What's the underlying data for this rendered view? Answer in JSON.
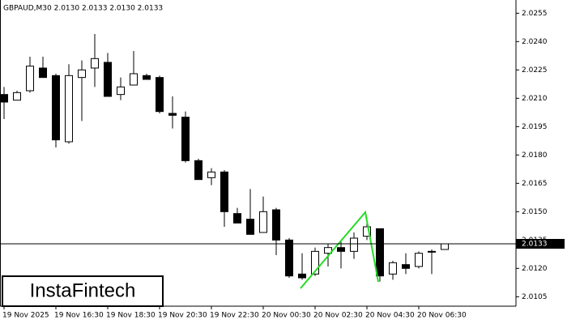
{
  "chart_data": {
    "type": "candlestick",
    "title": "GBPAUD,M30  2.0130 2.0133 2.0130 2.0133",
    "categories": [
      "19 Nov 2025",
      null,
      null,
      null,
      "19 Nov 16:30",
      null,
      null,
      null,
      "19 Nov 18:30",
      null,
      null,
      null,
      "19 Nov 20:30",
      null,
      null,
      null,
      "19 Nov 22:30",
      null,
      null,
      null,
      "20 Nov 00:30",
      null,
      null,
      null,
      "20 Nov 02:30",
      null,
      null,
      null,
      "20 Nov 04:30",
      null,
      null,
      null,
      "20 Nov 06:30",
      null,
      null
    ],
    "open": [
      2.0212,
      2.0209,
      2.0214,
      2.0226,
      2.0222,
      2.0187,
      2.0221,
      2.0226,
      2.0229,
      2.0212,
      2.0217,
      2.0222,
      2.0221,
      2.0202,
      2.02,
      2.0177,
      2.0168,
      2.0171,
      2.0149,
      2.0146,
      2.0139,
      2.0151,
      2.0135,
      2.0117,
      2.0117,
      2.0128,
      2.0131,
      2.0129,
      2.0137,
      2.0141,
      2.0117,
      2.0122,
      2.0121,
      2.0129,
      2.013
    ],
    "high": [
      2.0216,
      2.0214,
      2.0232,
      2.0232,
      2.0223,
      2.0228,
      2.023,
      2.0244,
      2.0234,
      2.0221,
      2.0235,
      2.0223,
      2.0222,
      2.0211,
      2.0203,
      2.0178,
      2.0173,
      2.0172,
      2.0152,
      2.0162,
      2.0158,
      2.0152,
      2.0136,
      2.0128,
      2.0131,
      2.0133,
      2.0135,
      2.0139,
      2.0147,
      2.0141,
      2.0124,
      2.0128,
      2.0129,
      2.013,
      2.0133
    ],
    "low": [
      2.0199,
      2.0209,
      2.0213,
      2.0221,
      2.0184,
      2.0186,
      2.0198,
      2.0216,
      2.0211,
      2.0209,
      2.0217,
      2.022,
      2.0202,
      2.0194,
      2.0176,
      2.0167,
      2.0164,
      2.0142,
      2.0144,
      2.0138,
      2.0139,
      2.0127,
      2.0115,
      2.0114,
      2.0116,
      2.0121,
      2.012,
      2.0125,
      2.0135,
      2.0113,
      2.0114,
      2.0117,
      2.012,
      2.0117,
      2.013
    ],
    "close": [
      2.0208,
      2.0213,
      2.0227,
      2.0221,
      2.0188,
      2.0222,
      2.0225,
      2.0231,
      2.0211,
      2.0216,
      2.0223,
      2.022,
      2.0203,
      2.0201,
      2.0177,
      2.0167,
      2.0171,
      2.015,
      2.0144,
      2.0138,
      2.015,
      2.0135,
      2.0116,
      2.0115,
      2.0129,
      2.0131,
      2.0129,
      2.0136,
      2.0142,
      2.0116,
      2.0123,
      2.012,
      2.0128,
      2.0129,
      2.0133
    ],
    "up_color": "#ffffff",
    "down_color": "#000000",
    "current_price": 2.0133,
    "ylim": [
      2.01,
      2.0262
    ],
    "yticks": [
      2.0255,
      {
        "value": 2.024,
        "label": "2.0240"
      },
      2.0225,
      {
        "value": 2.021,
        "label": "2.0210"
      },
      2.0195,
      {
        "value": 2.018,
        "label": "2.0180"
      },
      2.0165,
      {
        "value": 2.015,
        "label": "2.0150"
      },
      2.0135,
      {
        "value": 2.012,
        "label": "2.0120"
      },
      2.0105
    ],
    "watermark": "InstaFintech"
  }
}
